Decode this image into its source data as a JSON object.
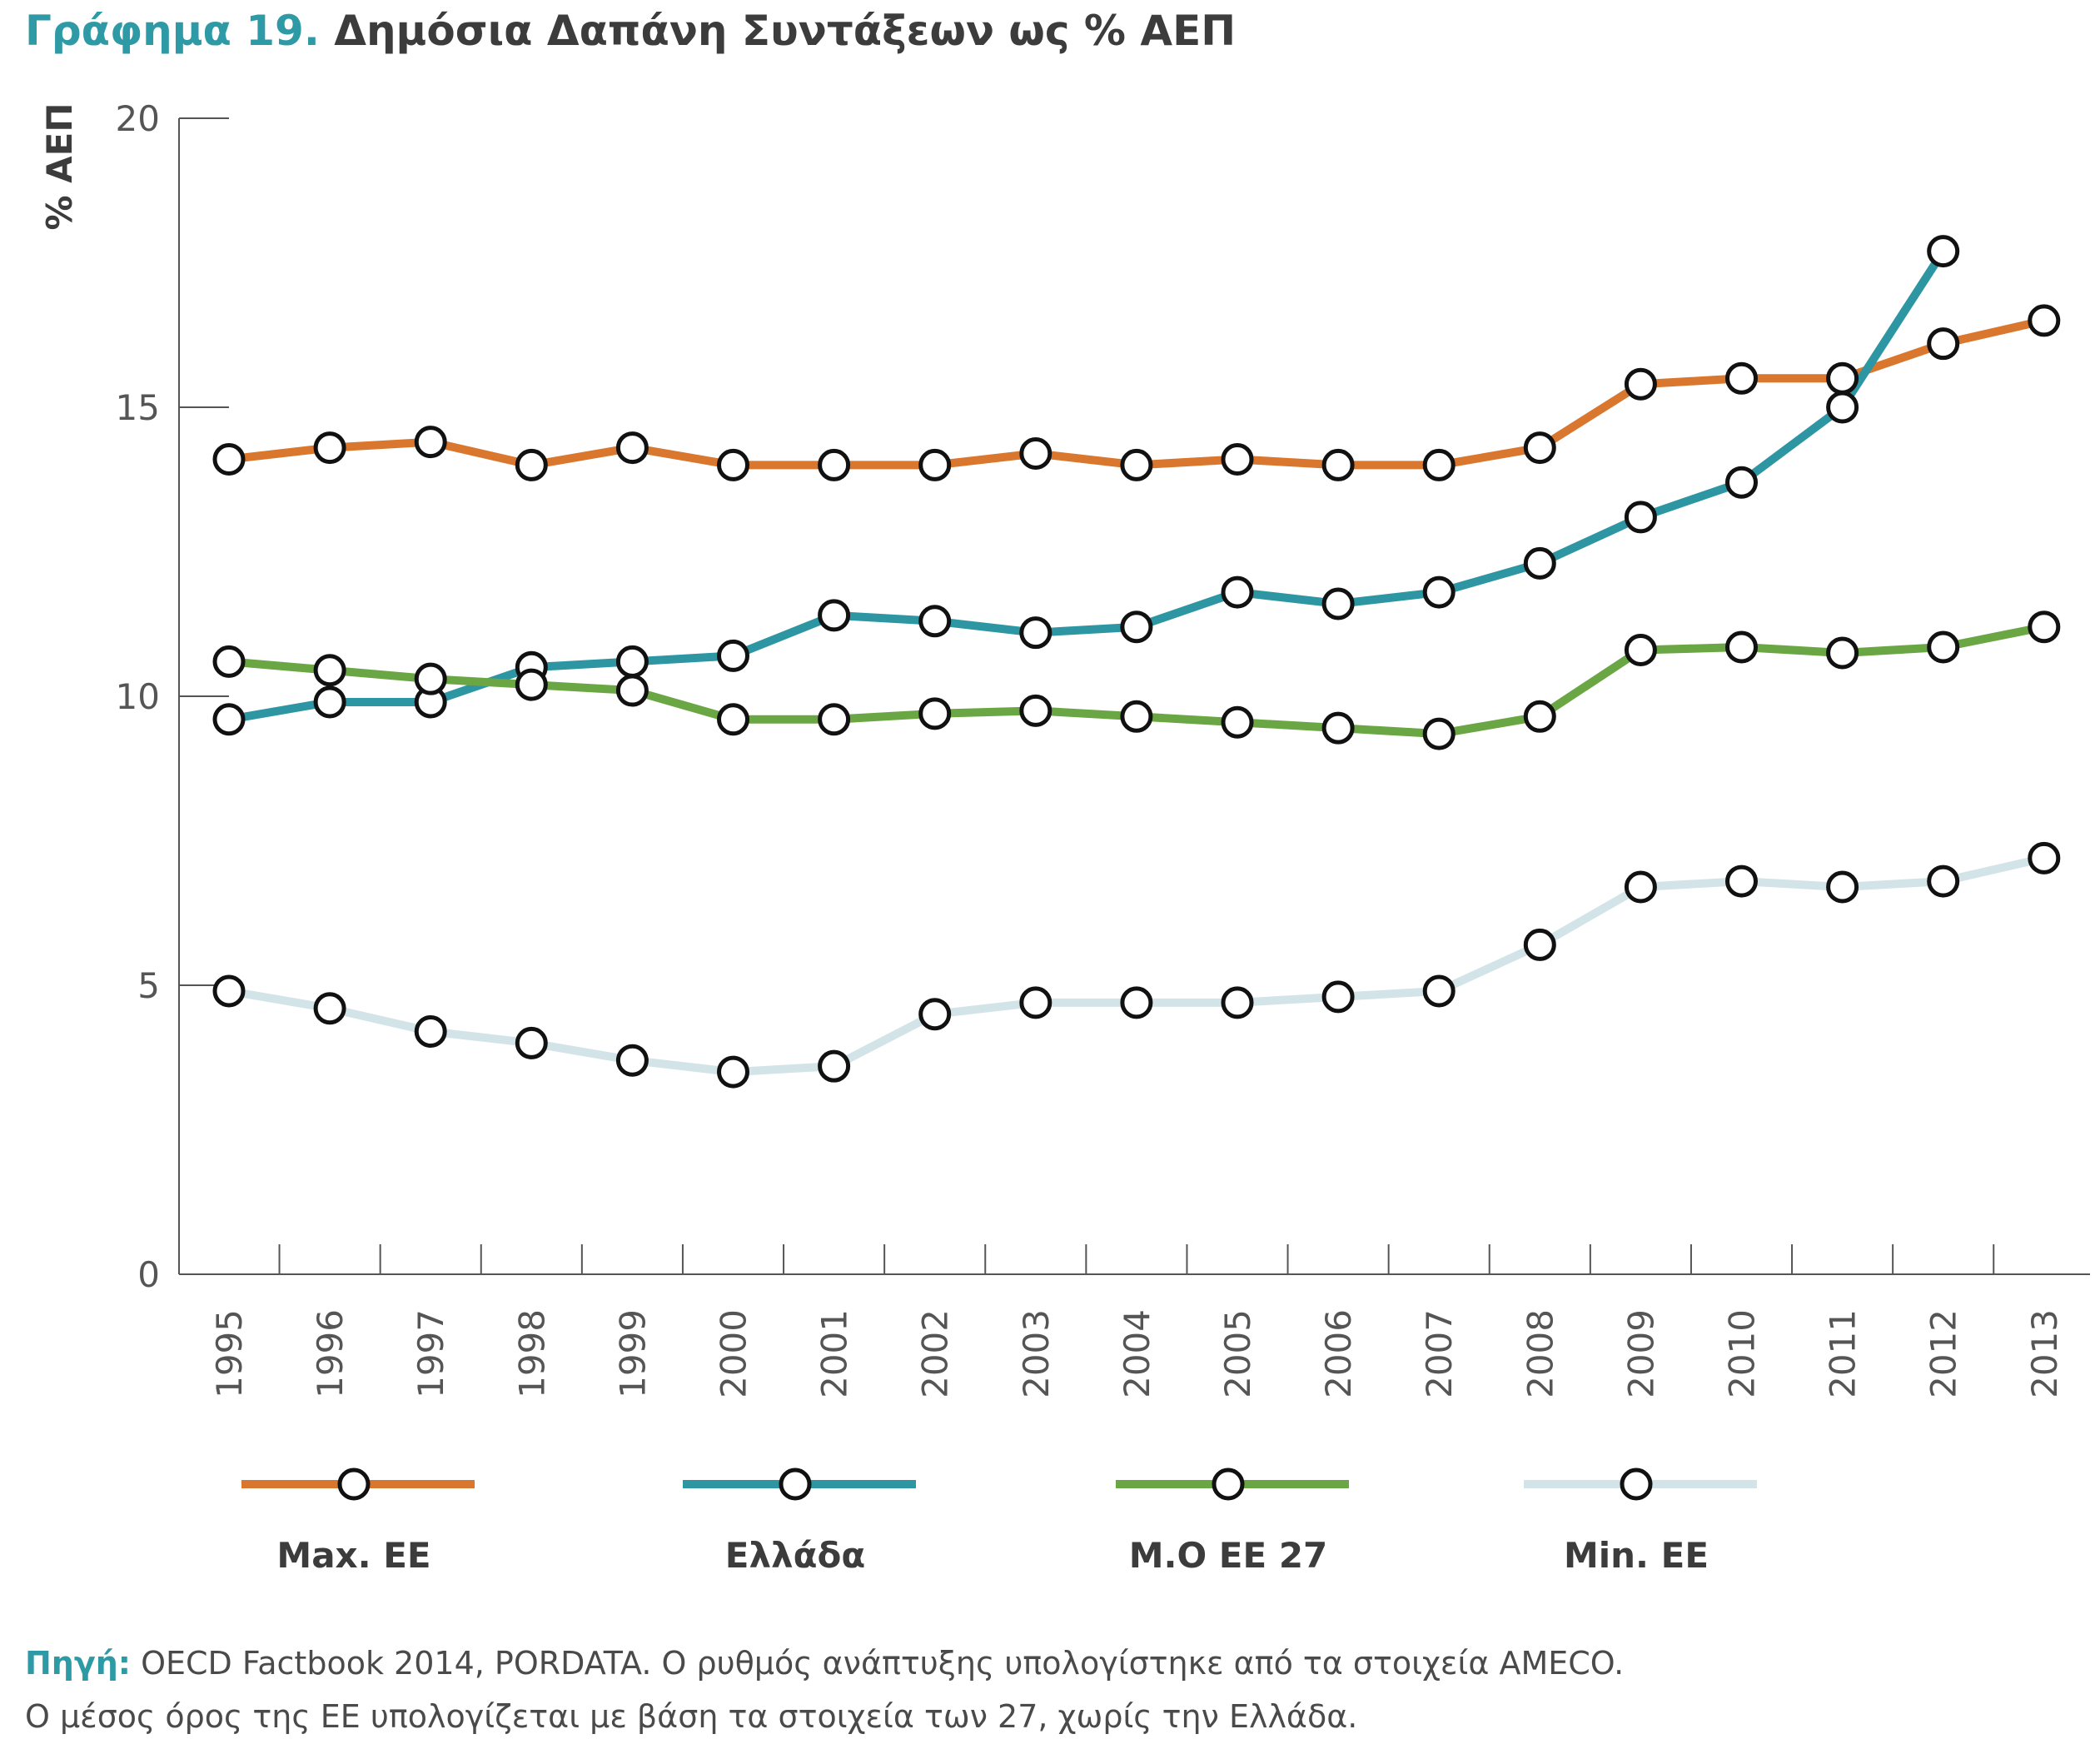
{
  "title": {
    "prefix": "Γράφημα 19.",
    "text": "Δημόσια Δαπάνη Συντάξεων ως % ΑΕΠ"
  },
  "source": {
    "label": "Πηγή:",
    "line1": "OECD Factbook 2014, PORDATA. Ο ρυθμός ανάπτυξης υπολογίστηκε από τα στοιχεία AMECO.",
    "line2": "Ο μέσος όρος της ΕΕ υπολογίζεται με βάση τα στοιχεία των 27, χωρίς την Ελλάδα."
  },
  "chart_data": {
    "type": "line",
    "ylabel": "% ΑΕΠ",
    "xlabel": "",
    "ylim": [
      0,
      20
    ],
    "yticks": [
      "0",
      "5",
      "10",
      "15",
      "20"
    ],
    "grid": false,
    "legend_position": "bottom",
    "categories": [
      "1995",
      "1996",
      "1997",
      "1998",
      "1999",
      "2000",
      "2001",
      "2002",
      "2003",
      "2004",
      "2005",
      "2006",
      "2007",
      "2008",
      "2009",
      "2010",
      "2011",
      "2012",
      "2013"
    ],
    "series": [
      {
        "name": "Max. ΕΕ",
        "color": "#d9772e",
        "values": [
          14.1,
          14.3,
          14.4,
          14.0,
          14.3,
          14.0,
          14.0,
          14.0,
          14.2,
          14.0,
          14.1,
          14.0,
          14.0,
          14.3,
          15.4,
          15.5,
          15.5,
          16.1,
          16.5
        ]
      },
      {
        "name": "Ελλάδα",
        "color": "#2d96a2",
        "values": [
          9.6,
          9.9,
          9.9,
          10.5,
          10.6,
          10.7,
          11.4,
          11.3,
          11.1,
          11.2,
          11.8,
          11.6,
          11.8,
          12.3,
          13.1,
          13.7,
          15.0,
          17.7,
          null
        ]
      },
      {
        "name": "Μ.Ο ΕΕ 27",
        "color": "#6ba644",
        "values": [
          10.6,
          10.45,
          10.3,
          10.2,
          10.1,
          9.6,
          9.6,
          9.7,
          9.75,
          9.65,
          9.55,
          9.45,
          9.35,
          9.65,
          10.8,
          10.85,
          10.75,
          10.85,
          11.2
        ]
      },
      {
        "name": "Min. ΕΕ",
        "color": "#d3e4e8",
        "values": [
          4.9,
          4.6,
          4.2,
          4.0,
          3.7,
          3.5,
          3.6,
          4.5,
          4.7,
          4.7,
          4.7,
          4.8,
          4.9,
          5.7,
          6.7,
          6.8,
          6.7,
          6.8,
          7.2
        ]
      }
    ]
  }
}
